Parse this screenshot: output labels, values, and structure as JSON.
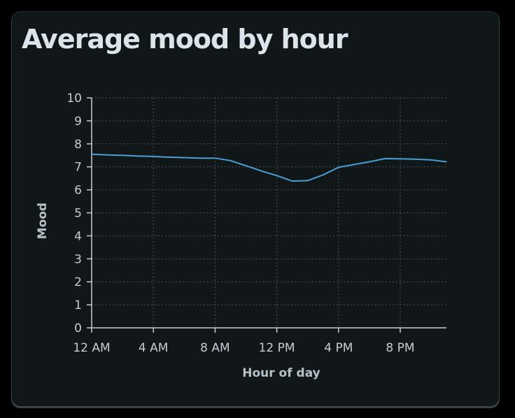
{
  "chart_data": {
    "type": "line",
    "title": "Average mood by hour",
    "xlabel": "Hour of day",
    "ylabel": "Mood",
    "x_tick_labels": [
      {
        "hour": 0,
        "label": "12 AM"
      },
      {
        "hour": 4,
        "label": "4 AM"
      },
      {
        "hour": 8,
        "label": "8 AM"
      },
      {
        "hour": 12,
        "label": "12 PM"
      },
      {
        "hour": 16,
        "label": "4 PM"
      },
      {
        "hour": 20,
        "label": "8 PM"
      }
    ],
    "y_ticks": [
      0,
      1,
      2,
      3,
      4,
      5,
      6,
      7,
      8,
      9,
      10
    ],
    "xlim": [
      0,
      23
    ],
    "ylim": [
      0,
      10
    ],
    "grid": true,
    "line_color": "#4a9fd4",
    "series": [
      {
        "x": [
          0,
          1,
          2,
          3,
          4,
          5,
          6,
          7,
          8,
          9,
          10,
          11,
          12,
          13,
          14,
          15,
          16,
          17,
          18,
          19,
          20,
          21,
          22,
          23
        ],
        "values": [
          7.55,
          7.52,
          7.5,
          7.47,
          7.45,
          7.42,
          7.4,
          7.38,
          7.38,
          7.27,
          7.05,
          6.82,
          6.62,
          6.38,
          6.4,
          6.65,
          6.98,
          7.1,
          7.22,
          7.36,
          7.35,
          7.33,
          7.3,
          7.22
        ]
      }
    ]
  }
}
